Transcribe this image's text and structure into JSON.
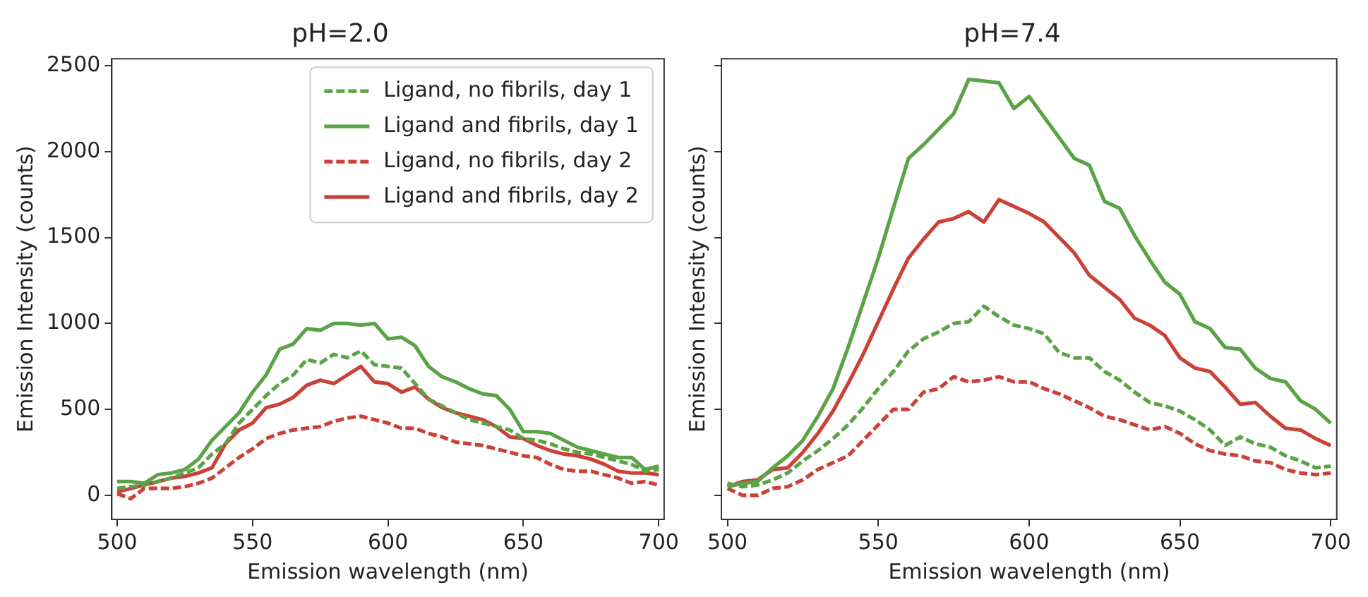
{
  "chart_data": [
    {
      "type": "line",
      "title": "pH=2.0",
      "xlabel": "Emission wavelength (nm)",
      "ylabel": "Emission Intensity (counts)",
      "x": [
        500,
        505,
        510,
        515,
        520,
        525,
        530,
        535,
        540,
        545,
        550,
        555,
        560,
        565,
        570,
        575,
        580,
        585,
        590,
        595,
        600,
        605,
        610,
        615,
        620,
        625,
        630,
        635,
        640,
        645,
        650,
        655,
        660,
        665,
        670,
        675,
        680,
        685,
        690,
        695,
        700
      ],
      "xlim": [
        498,
        702
      ],
      "xticks": [
        500,
        550,
        600,
        650,
        700
      ],
      "ylim": [
        -140,
        2540
      ],
      "yticks": [
        0,
        500,
        1000,
        1500,
        2000,
        2500
      ],
      "grid": false,
      "legend": "top right",
      "marker": "none",
      "series": [
        {
          "name": "Ligand, no fibrils, day 1",
          "color": "#5aa346",
          "line_style": "dashed",
          "values": [
            40,
            50,
            60,
            80,
            100,
            130,
            160,
            240,
            300,
            420,
            500,
            580,
            650,
            700,
            790,
            770,
            820,
            800,
            840,
            760,
            750,
            740,
            650,
            560,
            520,
            480,
            440,
            420,
            400,
            380,
            330,
            320,
            300,
            270,
            250,
            240,
            220,
            200,
            180,
            140,
            150
          ]
        },
        {
          "name": "Ligand and fibrils, day 1",
          "color": "#5aa346",
          "line_style": "solid",
          "values": [
            80,
            80,
            70,
            120,
            130,
            150,
            210,
            320,
            400,
            480,
            600,
            700,
            850,
            880,
            970,
            960,
            1000,
            1000,
            990,
            1000,
            910,
            920,
            870,
            750,
            690,
            660,
            620,
            590,
            580,
            500,
            370,
            370,
            360,
            320,
            280,
            260,
            240,
            220,
            220,
            150,
            170
          ]
        },
        {
          "name": "Ligand, no fibrils, day 2",
          "color": "#cc4137",
          "line_style": "dashed",
          "values": [
            10,
            -20,
            40,
            40,
            40,
            50,
            70,
            100,
            160,
            220,
            270,
            330,
            360,
            380,
            390,
            400,
            430,
            450,
            460,
            440,
            420,
            390,
            390,
            360,
            340,
            310,
            300,
            290,
            270,
            250,
            230,
            220,
            180,
            150,
            140,
            140,
            120,
            100,
            70,
            80,
            60
          ]
        },
        {
          "name": "Ligand and fibrils, day 2",
          "color": "#cc4137",
          "line_style": "solid",
          "values": [
            20,
            40,
            60,
            80,
            100,
            110,
            130,
            160,
            300,
            380,
            420,
            510,
            530,
            570,
            640,
            670,
            650,
            700,
            750,
            660,
            650,
            600,
            630,
            560,
            510,
            480,
            460,
            440,
            400,
            340,
            330,
            290,
            260,
            240,
            230,
            210,
            180,
            140,
            130,
            130,
            120
          ]
        }
      ]
    },
    {
      "type": "line",
      "title": "pH=7.4",
      "xlabel": "Emission wavelength (nm)",
      "ylabel": "Emission Intensity (counts)",
      "x": [
        500,
        505,
        510,
        515,
        520,
        525,
        530,
        535,
        540,
        545,
        550,
        555,
        560,
        565,
        570,
        575,
        580,
        585,
        590,
        595,
        600,
        605,
        610,
        615,
        620,
        625,
        630,
        635,
        640,
        645,
        650,
        655,
        660,
        665,
        670,
        675,
        680,
        685,
        690,
        695,
        700
      ],
      "xlim": [
        498,
        702
      ],
      "xticks": [
        500,
        550,
        600,
        650,
        700
      ],
      "ylim": [
        -140,
        2540
      ],
      "yticks": [
        0,
        500,
        1000,
        1500,
        2000,
        2500
      ],
      "tick_labels": "x",
      "grid": false,
      "marker": "none",
      "series": [
        {
          "color": "#5aa346",
          "line_style": "dashed",
          "values": [
            70,
            50,
            60,
            90,
            130,
            200,
            260,
            330,
            410,
            510,
            620,
            720,
            840,
            910,
            950,
            1000,
            1010,
            1100,
            1040,
            990,
            970,
            940,
            830,
            800,
            800,
            720,
            670,
            600,
            540,
            520,
            490,
            440,
            380,
            290,
            340,
            300,
            280,
            230,
            200,
            160,
            170
          ]
        },
        {
          "color": "#5aa346",
          "line_style": "solid",
          "values": [
            50,
            70,
            80,
            160,
            230,
            320,
            460,
            620,
            860,
            1120,
            1380,
            1670,
            1960,
            2040,
            2130,
            2220,
            2420,
            2410,
            2400,
            2250,
            2320,
            2200,
            2080,
            1960,
            1920,
            1710,
            1670,
            1510,
            1370,
            1240,
            1170,
            1010,
            970,
            860,
            850,
            740,
            680,
            660,
            550,
            500,
            420
          ]
        },
        {
          "color": "#cc4137",
          "line_style": "dashed",
          "values": [
            40,
            0,
            0,
            40,
            50,
            90,
            150,
            190,
            230,
            320,
            410,
            500,
            500,
            600,
            620,
            690,
            660,
            670,
            690,
            660,
            660,
            620,
            590,
            550,
            510,
            460,
            440,
            410,
            380,
            400,
            360,
            300,
            260,
            240,
            230,
            200,
            190,
            150,
            130,
            120,
            130
          ]
        },
        {
          "color": "#cc4137",
          "line_style": "solid",
          "values": [
            50,
            80,
            90,
            150,
            160,
            250,
            360,
            490,
            650,
            820,
            1010,
            1200,
            1380,
            1490,
            1590,
            1610,
            1650,
            1590,
            1720,
            1680,
            1640,
            1590,
            1500,
            1410,
            1280,
            1210,
            1140,
            1030,
            990,
            930,
            800,
            740,
            720,
            630,
            530,
            540,
            460,
            390,
            380,
            330,
            290
          ]
        }
      ]
    }
  ]
}
